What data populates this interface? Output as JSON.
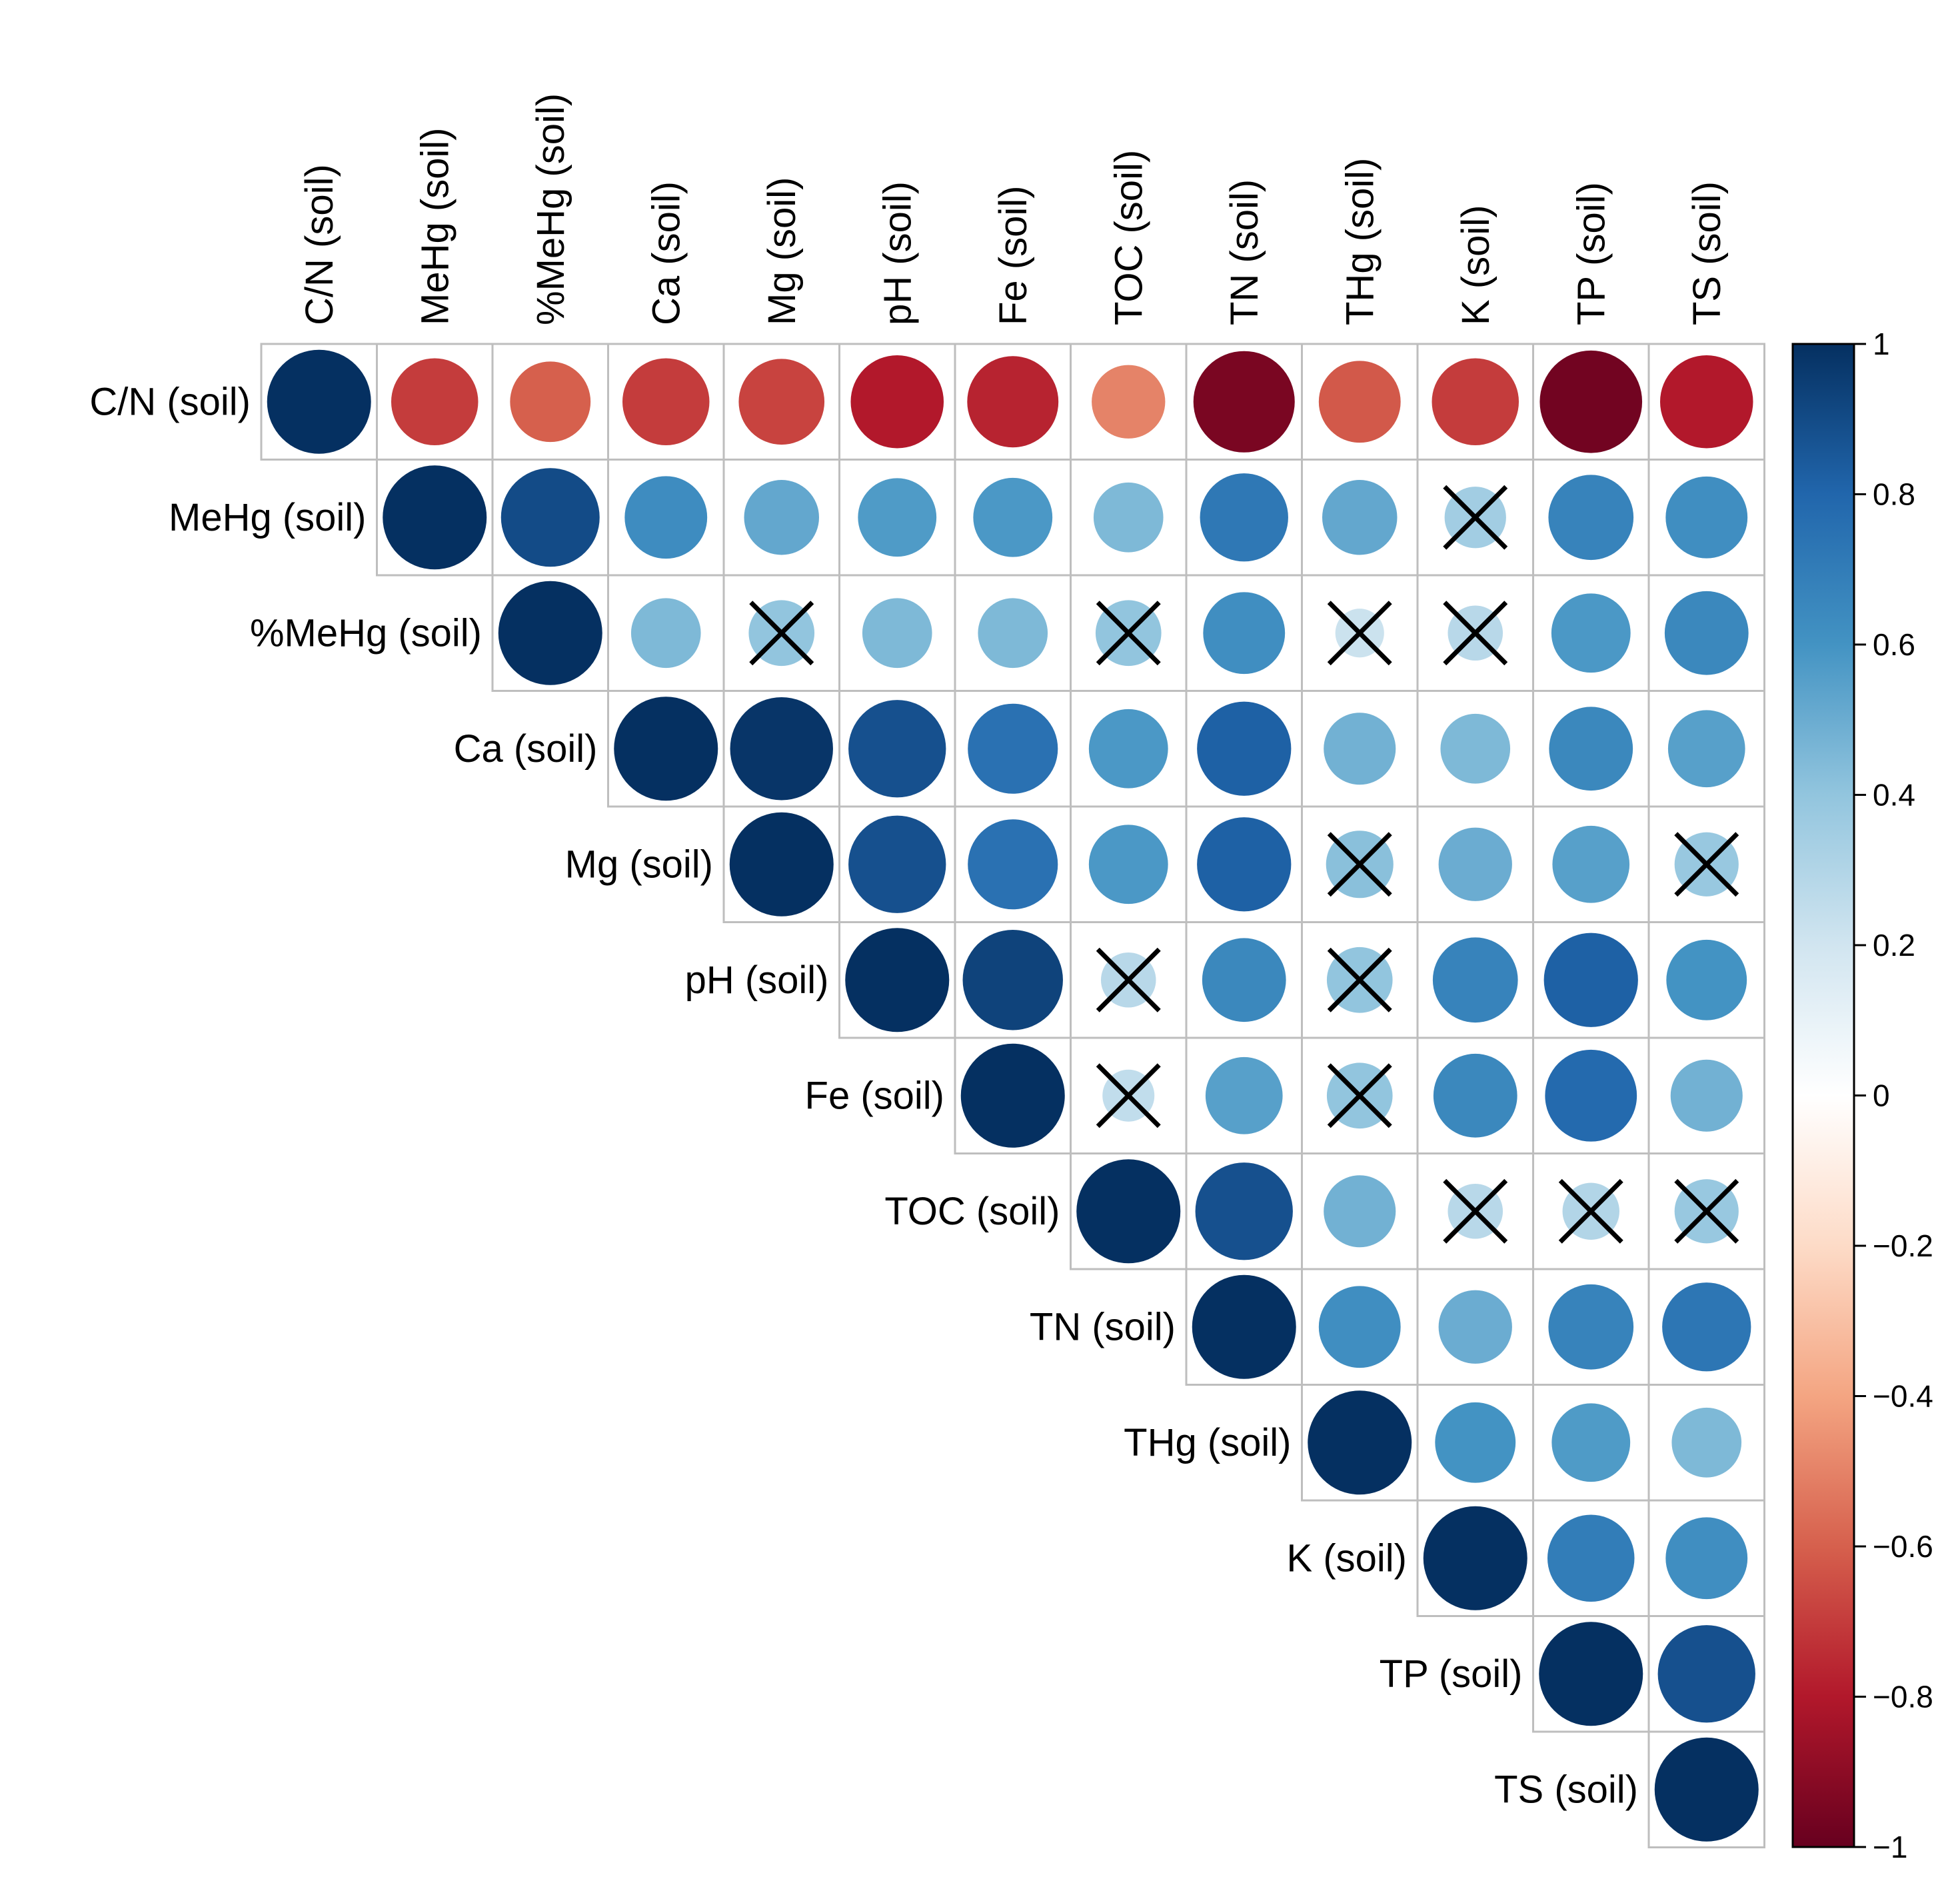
{
  "chart_data": {
    "type": "correlation-matrix",
    "variables": [
      "C/N (soil)",
      "MeHg (soil)",
      "%MeHg (soil)",
      "Ca (soil)",
      "Mg (soil)",
      "pH (soil)",
      "Fe (soil)",
      "TOC (soil)",
      "TN (soil)",
      "THg (soil)",
      "K (soil)",
      "TP (soil)",
      "TS (soil)"
    ],
    "matrix": [
      [
        1,
        -0.7,
        -0.6,
        -0.7,
        -0.68,
        -0.8,
        -0.77,
        -0.5,
        -0.95,
        -0.62,
        -0.7,
        -0.97,
        -0.8
      ],
      [
        null,
        1,
        0.9,
        0.63,
        0.52,
        0.57,
        0.58,
        0.45,
        0.72,
        0.52,
        0.35,
        0.67,
        0.62
      ],
      [
        null,
        null,
        1,
        0.45,
        0.4,
        0.45,
        0.45,
        0.4,
        0.62,
        0.22,
        0.28,
        0.58,
        0.65
      ],
      [
        null,
        null,
        null,
        1,
        0.98,
        0.88,
        0.75,
        0.58,
        0.82,
        0.48,
        0.45,
        0.65,
        0.55
      ],
      [
        null,
        null,
        null,
        null,
        1,
        0.88,
        0.75,
        0.58,
        0.82,
        0.42,
        0.5,
        0.55,
        0.38
      ],
      [
        null,
        null,
        null,
        null,
        null,
        1,
        0.93,
        0.28,
        0.65,
        0.4,
        0.67,
        0.82,
        0.6
      ],
      [
        null,
        null,
        null,
        null,
        null,
        null,
        1,
        0.25,
        0.55,
        0.4,
        0.65,
        0.78,
        0.48
      ],
      [
        null,
        null,
        null,
        null,
        null,
        null,
        null,
        1,
        0.88,
        0.48,
        0.28,
        0.3,
        0.38
      ],
      [
        null,
        null,
        null,
        null,
        null,
        null,
        null,
        null,
        1,
        0.62,
        0.5,
        0.67,
        0.73
      ],
      [
        null,
        null,
        null,
        null,
        null,
        null,
        null,
        null,
        null,
        1,
        0.6,
        0.57,
        0.45
      ],
      [
        null,
        null,
        null,
        null,
        null,
        null,
        null,
        null,
        null,
        null,
        1,
        0.7,
        0.62
      ],
      [
        null,
        null,
        null,
        null,
        null,
        null,
        null,
        null,
        null,
        null,
        null,
        1,
        0.88
      ],
      [
        null,
        null,
        null,
        null,
        null,
        null,
        null,
        null,
        null,
        null,
        null,
        null,
        1
      ]
    ],
    "not_significant": [
      [
        1,
        10
      ],
      [
        2,
        4
      ],
      [
        2,
        7
      ],
      [
        2,
        9
      ],
      [
        2,
        10
      ],
      [
        4,
        9
      ],
      [
        4,
        12
      ],
      [
        5,
        7
      ],
      [
        5,
        9
      ],
      [
        6,
        7
      ],
      [
        6,
        9
      ],
      [
        7,
        10
      ],
      [
        7,
        11
      ],
      [
        7,
        12
      ]
    ],
    "colorbar": {
      "range": [
        -1,
        1
      ],
      "tick_values": [
        1,
        0.8,
        0.6,
        0.4,
        0.2,
        0,
        -0.2,
        -0.4,
        -0.6,
        -0.8,
        -1
      ],
      "tick_labels": [
        "1",
        "0.8",
        "0.6",
        "0.4",
        "0.2",
        "0",
        "−0.2",
        "−0.4",
        "−0.6",
        "−0.8",
        "−1"
      ],
      "colors": [
        "#67001F",
        "#B2182B",
        "#D6604D",
        "#F4A582",
        "#FDDBC7",
        "#FFFFFF",
        "#D1E5F0",
        "#92C5DE",
        "#4393C3",
        "#2166AC",
        "#053061"
      ]
    }
  }
}
